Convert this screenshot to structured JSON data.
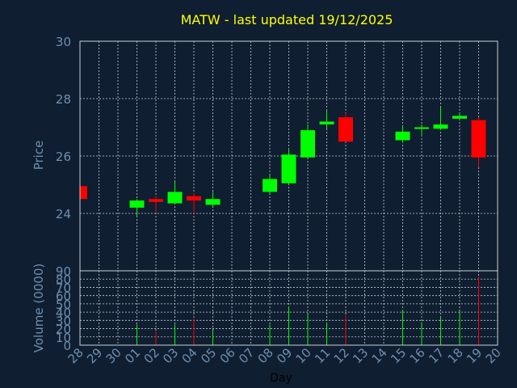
{
  "chart_data": {
    "type": "candlestick",
    "title": "MATW - last updated 19/12/2025",
    "xlabel": "Day",
    "price_ylabel": "Price",
    "volume_ylabel": "Volume (0000)",
    "x_ticks": [
      "28",
      "29",
      "30",
      "01",
      "02",
      "03",
      "04",
      "05",
      "06",
      "07",
      "08",
      "09",
      "10",
      "11",
      "12",
      "13",
      "14",
      "15",
      "16",
      "17",
      "18",
      "19",
      "20"
    ],
    "price_ylim": [
      22,
      30
    ],
    "price_ticks": [
      24,
      26,
      28,
      30
    ],
    "volume_ylim": [
      0,
      90
    ],
    "volume_ticks": [
      0,
      10,
      20,
      30,
      40,
      50,
      60,
      70,
      80,
      90
    ],
    "grid": true,
    "up_color": "#00ff00",
    "down_color": "#ff0000",
    "candles": [
      {
        "day": "28",
        "open": 24.95,
        "close": 24.5,
        "high": 24.95,
        "low": 24.5,
        "volume": 0
      },
      {
        "day": "01",
        "open": 24.2,
        "close": 24.45,
        "high": 24.5,
        "low": 23.9,
        "volume": 25
      },
      {
        "day": "02",
        "open": 24.5,
        "close": 24.4,
        "high": 24.6,
        "low": 24.05,
        "volume": 17
      },
      {
        "day": "03",
        "open": 24.35,
        "close": 24.75,
        "high": 25.1,
        "low": 24.35,
        "volume": 25
      },
      {
        "day": "04",
        "open": 24.6,
        "close": 24.45,
        "high": 24.7,
        "low": 24.0,
        "volume": 32
      },
      {
        "day": "05",
        "open": 24.3,
        "close": 24.5,
        "high": 24.75,
        "low": 24.25,
        "volume": 18
      },
      {
        "day": "08",
        "open": 24.75,
        "close": 25.2,
        "high": 25.35,
        "low": 24.7,
        "volume": 25
      },
      {
        "day": "09",
        "open": 25.05,
        "close": 26.05,
        "high": 26.25,
        "low": 25.05,
        "volume": 47
      },
      {
        "day": "10",
        "open": 25.95,
        "close": 26.9,
        "high": 27.1,
        "low": 25.95,
        "volume": 38
      },
      {
        "day": "11",
        "open": 27.1,
        "close": 27.2,
        "high": 27.6,
        "low": 26.95,
        "volume": 27
      },
      {
        "day": "12",
        "open": 27.35,
        "close": 26.5,
        "high": 27.5,
        "low": 26.5,
        "volume": 36
      },
      {
        "day": "15",
        "open": 26.55,
        "close": 26.85,
        "high": 27.05,
        "low": 26.45,
        "volume": 43
      },
      {
        "day": "16",
        "open": 26.95,
        "close": 27.0,
        "high": 27.1,
        "low": 26.7,
        "volume": 28
      },
      {
        "day": "17",
        "open": 26.95,
        "close": 27.1,
        "high": 27.7,
        "low": 26.9,
        "volume": 34
      },
      {
        "day": "18",
        "open": 27.3,
        "close": 27.4,
        "high": 27.5,
        "low": 27.3,
        "volume": 41
      },
      {
        "day": "19",
        "open": 27.25,
        "close": 25.95,
        "high": 27.35,
        "low": 25.6,
        "volume": 83
      }
    ]
  }
}
